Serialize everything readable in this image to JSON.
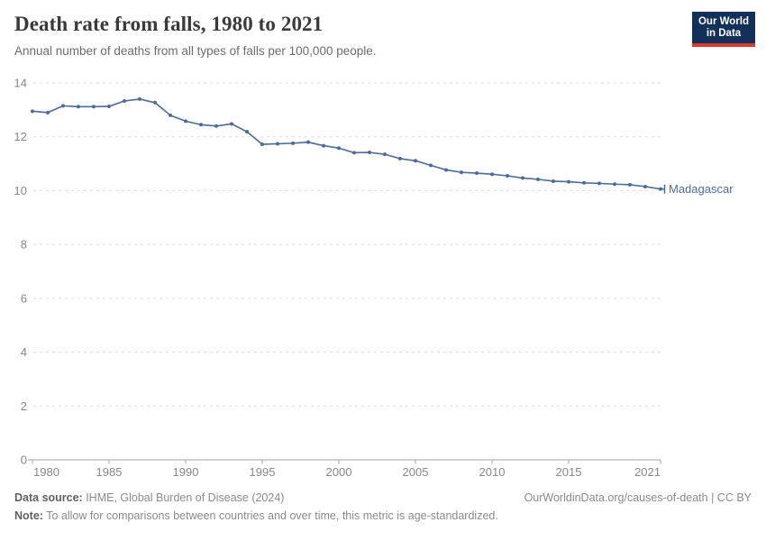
{
  "header": {
    "title": "Death rate from falls, 1980 to 2021",
    "subtitle": "Annual number of deaths from all types of falls per 100,000 people."
  },
  "logo": {
    "line1": "Our World",
    "line2": "in Data",
    "bg_color": "#12305a",
    "accent_color": "#dc382d"
  },
  "chart_data": {
    "type": "line",
    "title": "Death rate from falls, 1980 to 2021",
    "x": [
      1980,
      1981,
      1982,
      1983,
      1984,
      1985,
      1986,
      1987,
      1988,
      1989,
      1990,
      1991,
      1992,
      1993,
      1994,
      1995,
      1996,
      1997,
      1998,
      1999,
      2000,
      2001,
      2002,
      2003,
      2004,
      2005,
      2006,
      2007,
      2008,
      2009,
      2010,
      2011,
      2012,
      2013,
      2014,
      2015,
      2016,
      2017,
      2018,
      2019,
      2020,
      2021
    ],
    "series": [
      {
        "name": "Madagascar",
        "color": "#4c6a9c",
        "values": [
          12.95,
          12.9,
          13.15,
          13.12,
          13.12,
          13.13,
          13.33,
          13.4,
          13.27,
          12.8,
          12.58,
          12.45,
          12.4,
          12.48,
          12.19,
          11.72,
          11.74,
          11.76,
          11.8,
          11.67,
          11.58,
          11.41,
          11.42,
          11.35,
          11.19,
          11.11,
          10.94,
          10.77,
          10.68,
          10.65,
          10.61,
          10.55,
          10.47,
          10.42,
          10.35,
          10.33,
          10.29,
          10.27,
          10.24,
          10.22,
          10.15,
          10.06
        ]
      }
    ],
    "xlabel": "",
    "ylabel": "",
    "ylim": [
      0,
      14
    ],
    "yticks": [
      0,
      2,
      4,
      6,
      8,
      10,
      12,
      14
    ],
    "xtick_labels": [
      "1980",
      "1985",
      "1990",
      "1995",
      "2000",
      "2005",
      "2010",
      "2015",
      "2021"
    ],
    "xtick_years": [
      1980,
      1985,
      1990,
      1995,
      2000,
      2005,
      2010,
      2015,
      2021
    ],
    "grid": "horizontal dashed",
    "legend_position": "end-of-line label",
    "end_label": "Madagascar",
    "marker": "dot"
  },
  "footer": {
    "source_label": "Data source:",
    "source_text": " IHME, Global Burden of Disease (2024)",
    "link": "OurWorldinData.org/causes-of-death | CC BY",
    "note_label": "Note:",
    "note_text": " To allow for comparisons between countries and over time, this metric is age-standardized."
  }
}
